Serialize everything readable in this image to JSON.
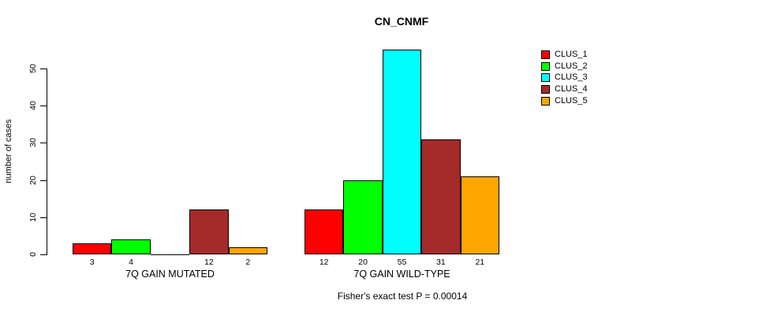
{
  "chart_data": {
    "type": "bar",
    "title": "CN_CNMF",
    "ylabel": "number of cases",
    "xlabel": "",
    "groups": [
      "7Q GAIN MUTATED",
      "7Q GAIN WILD-TYPE"
    ],
    "series": [
      {
        "name": "CLUS_1",
        "color": "#FF0000",
        "values": [
          3,
          12
        ]
      },
      {
        "name": "CLUS_2",
        "color": "#00FF00",
        "values": [
          4,
          20
        ]
      },
      {
        "name": "CLUS_3",
        "color": "#00FFFF",
        "values": [
          0,
          55
        ]
      },
      {
        "name": "CLUS_4",
        "color": "#A52A2A",
        "values": [
          12,
          31
        ]
      },
      {
        "name": "CLUS_5",
        "color": "#FFA500",
        "values": [
          2,
          21
        ]
      }
    ],
    "bar_value_labels": [
      [
        "3",
        "4",
        "",
        "12",
        "2"
      ],
      [
        "12",
        "20",
        "55",
        "31",
        "21"
      ]
    ],
    "yticks": [
      0,
      10,
      20,
      30,
      40,
      50
    ],
    "ylim": [
      0,
      55
    ],
    "grid": false,
    "legend_position": "top-right",
    "legend_entries": [
      "CLUS_1",
      "CLUS_2",
      "CLUS_3",
      "CLUS_4",
      "CLUS_5"
    ],
    "annotation": "Fisher's exact test P = 0.00014"
  }
}
